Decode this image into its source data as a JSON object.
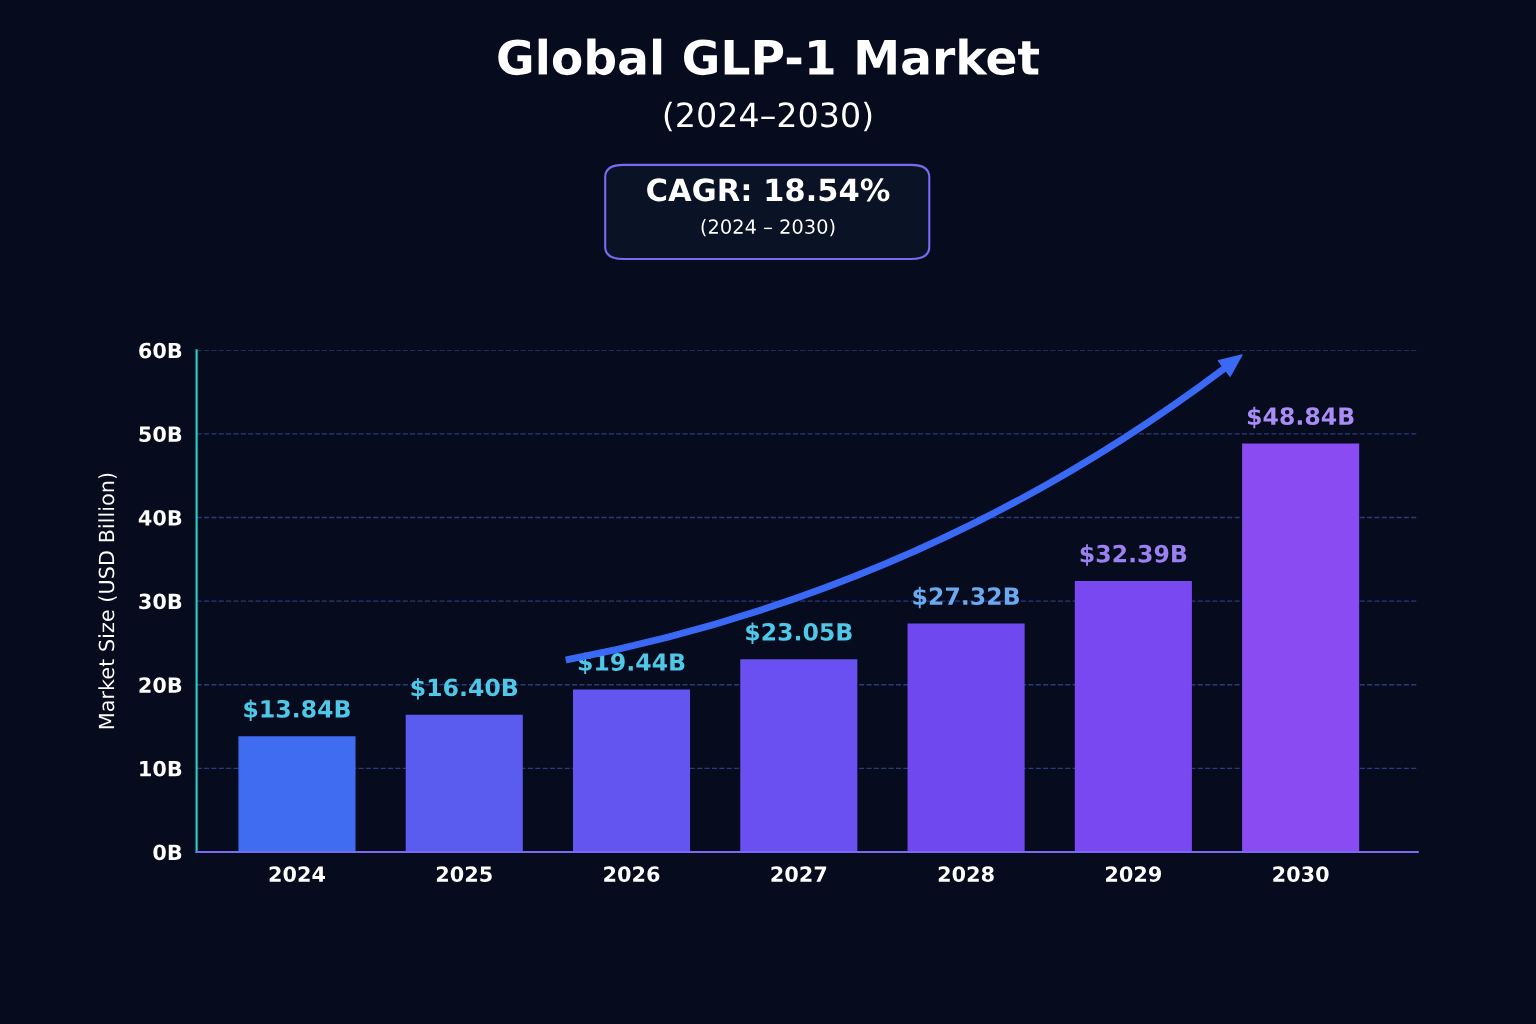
{
  "chart_data": {
    "type": "bar",
    "title": "Global GLP-1 Market",
    "subtitle": "(2024–2030)",
    "ylabel": "Market Size (USD Billion)",
    "annotations": [
      "CAGR: 18.54%",
      "(2024 – 2030)"
    ],
    "categories": [
      "2024",
      "2025",
      "2026",
      "2027",
      "2028",
      "2029",
      "2030"
    ],
    "values": [
      13.84,
      16.4,
      19.44,
      23.05,
      27.32,
      32.39,
      48.84
    ],
    "value_labels": [
      "$13.84B",
      "$16.40B",
      "$19.44B",
      "$23.05B",
      "$27.32B",
      "$32.39B",
      "$48.84B"
    ],
    "colors": [
      "#3f6cf0",
      "#5a5cf0",
      "#6356f0",
      "#6a50f0",
      "#7048f0",
      "#7a48f0",
      "#8a4cf2"
    ],
    "ylim": [
      0,
      60
    ],
    "yticks": [
      {
        "value": 0,
        "label": "0B"
      },
      {
        "value": 10,
        "label": "10B"
      },
      {
        "value": 20,
        "label": "20B"
      },
      {
        "value": 30,
        "label": "30B"
      },
      {
        "value": 40,
        "label": "40B"
      },
      {
        "value": 50,
        "label": "50B"
      },
      {
        "value": 60,
        "label": "60B"
      }
    ],
    "grid": "y",
    "line_style": "dashed"
  }
}
